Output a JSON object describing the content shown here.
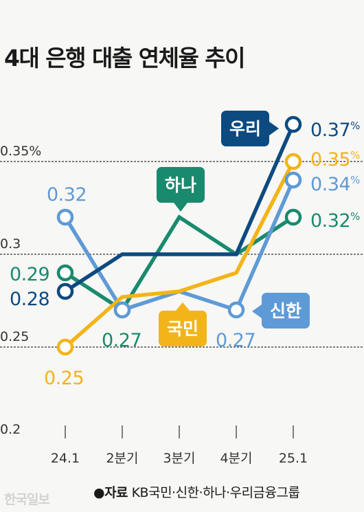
{
  "chart_data": {
    "type": "line",
    "title": "4대 은행 대출 연체율 추이",
    "categories": [
      "24.1",
      "2분기",
      "3분기",
      "4분기",
      "25.1"
    ],
    "y_ticks": [
      "0.35%",
      "0.3",
      "0.25",
      "0.2"
    ],
    "y_tick_values": [
      0.35,
      0.3,
      0.25,
      0.2
    ],
    "ylim": [
      0.2,
      0.37
    ],
    "grid": "dashed horizontal",
    "series": [
      {
        "name": "우리",
        "color": "#0d4a80",
        "values": [
          0.28,
          0.3,
          0.3,
          0.3,
          0.37
        ],
        "start_label": "0.28",
        "end_label": "0.37",
        "end_unit": "%"
      },
      {
        "name": "국민",
        "color": "#f2b418",
        "values": [
          0.25,
          0.277,
          0.28,
          0.29,
          0.35
        ],
        "start_label": "0.25",
        "end_label": "0.35",
        "end_unit": "%"
      },
      {
        "name": "신한",
        "color": "#5e9ad6",
        "values": [
          0.32,
          0.27,
          0.28,
          0.27,
          0.34
        ],
        "start_label": "0.32",
        "mid_label": "0.27",
        "end_label": "0.34",
        "end_unit": "%"
      },
      {
        "name": "하나",
        "color": "#198a6e",
        "values": [
          0.29,
          0.27,
          0.32,
          0.3,
          0.32
        ],
        "start_label": "0.29",
        "mid_label": "0.27",
        "end_label": "0.32",
        "end_unit": "%"
      }
    ]
  },
  "source": {
    "prefix": "●자료",
    "text": "KB국민·신한·하나·우리금융그룹"
  },
  "watermark": "한국일보"
}
